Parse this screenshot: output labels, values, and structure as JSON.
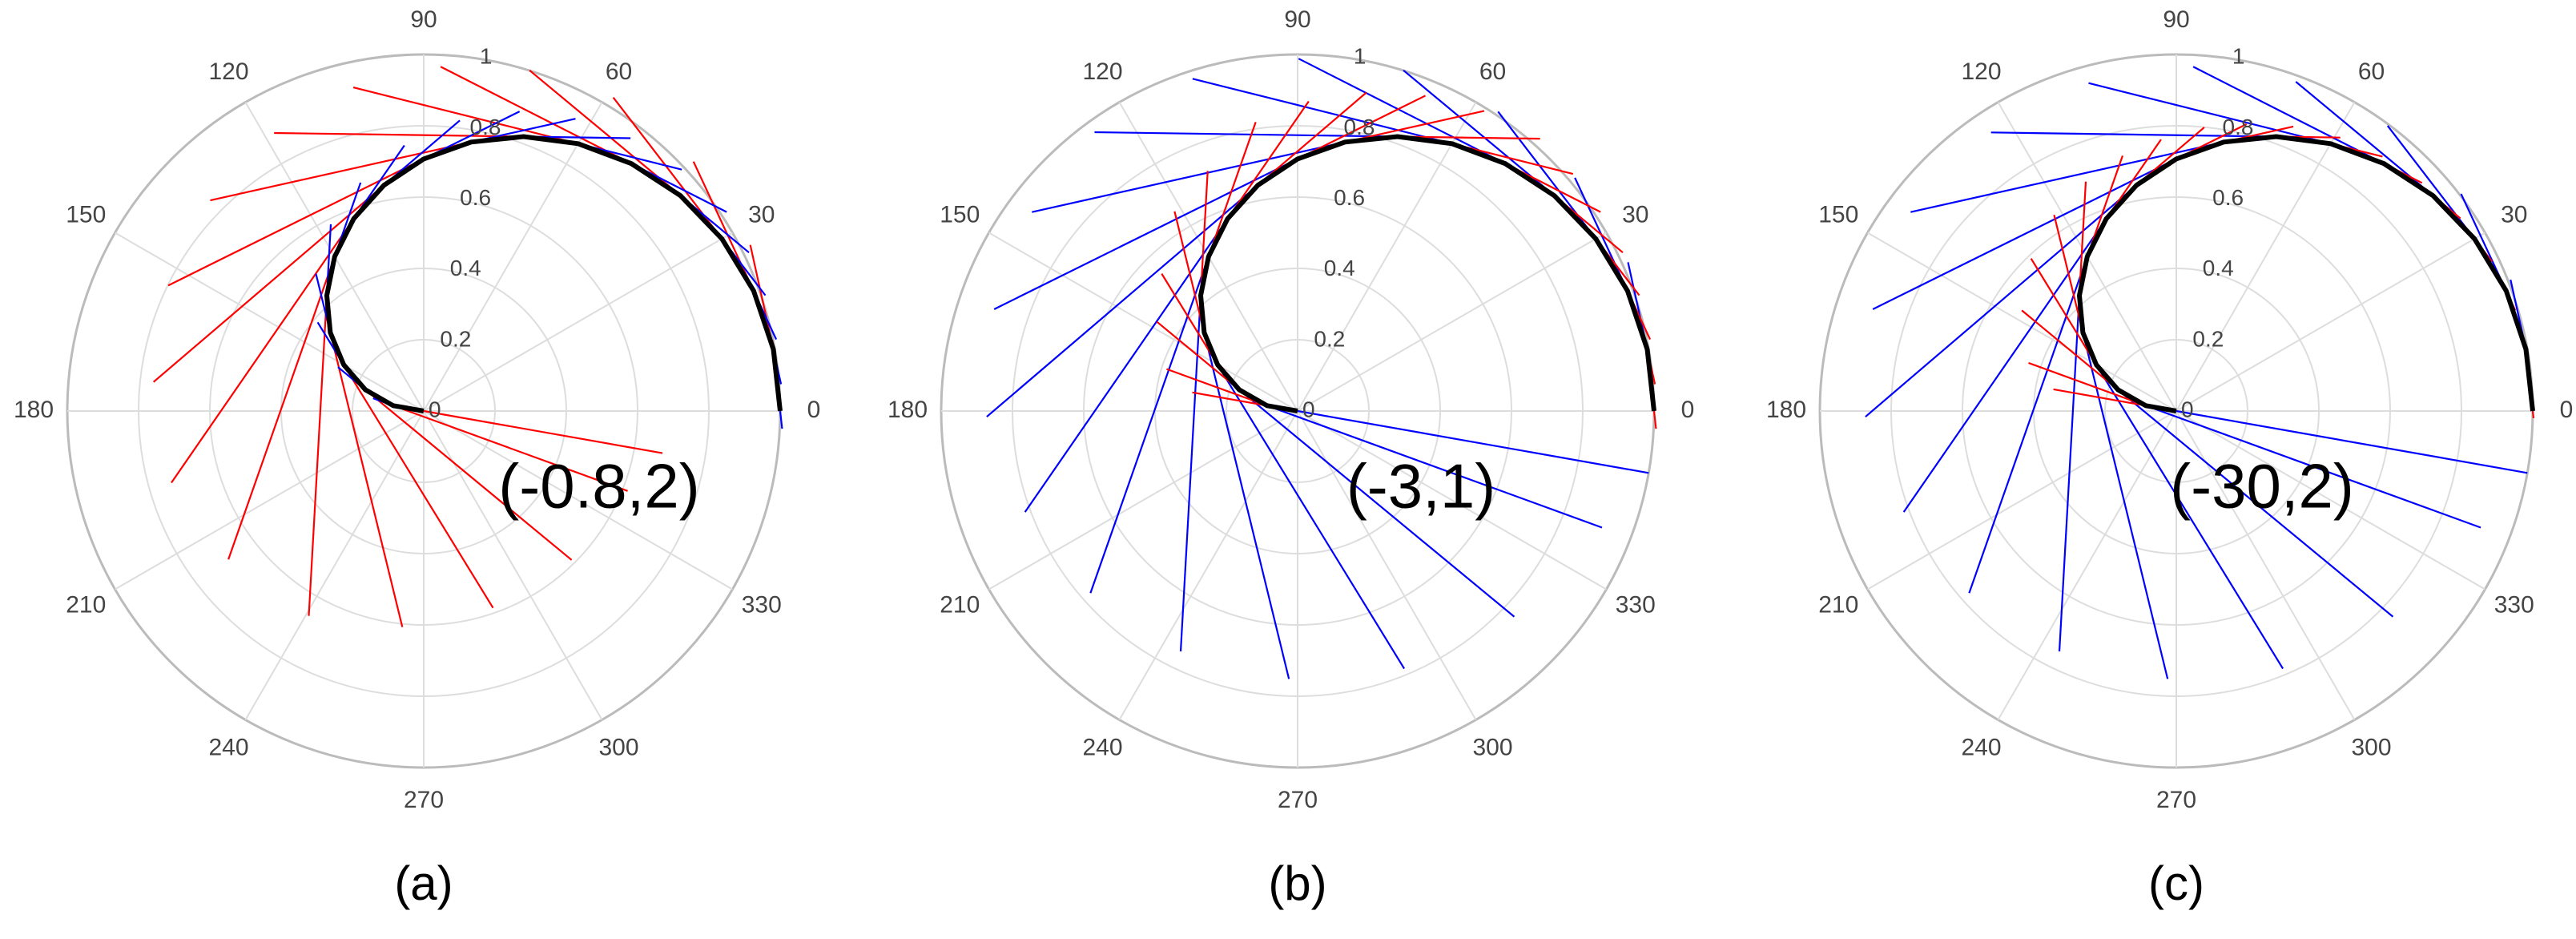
{
  "chart_data": [
    {
      "type": "polar",
      "caption": "(a)",
      "annotation": "(-0.8,2)",
      "theta_ticks": [
        0,
        30,
        60,
        90,
        120,
        150,
        180,
        210,
        240,
        270,
        300,
        330
      ],
      "rlim": [
        0,
        1
      ],
      "rticks": [
        0,
        0.2,
        0.4,
        0.6,
        0.8,
        1
      ],
      "x": [
        0,
        10,
        20,
        30,
        40,
        50,
        60,
        70,
        80,
        90,
        100,
        110,
        120,
        130,
        140,
        150,
        160,
        170,
        180
      ],
      "r": [
        1,
        0.996,
        0.985,
        0.966,
        0.94,
        0.906,
        0.866,
        0.819,
        0.766,
        0.707,
        0.643,
        0.574,
        0.5,
        0.423,
        0.342,
        0.259,
        0.174,
        0.087,
        0
      ],
      "curve_color": "#000000",
      "series": [
        {
          "color": "#ff0000",
          "values": [
            0.2,
            0.3,
            0.4,
            0.5,
            0.55,
            0.6,
            0.65,
            0.7,
            0.75,
            0.8,
            0.85,
            0.9,
            0.9,
            0.9,
            0.85,
            0.8,
            0.75,
            0.7,
            0.68
          ]
        },
        {
          "color": "#0000ff",
          "values": [
            -0.05,
            -0.1,
            -0.15,
            -0.2,
            -0.25,
            -0.3,
            -0.3,
            -0.3,
            -0.3,
            -0.3,
            -0.28,
            -0.25,
            -0.22,
            -0.2,
            -0.17,
            -0.14,
            -0.1,
            -0.06,
            -0.03
          ]
        }
      ]
    },
    {
      "type": "polar",
      "caption": "(b)",
      "annotation": "(-3,1)",
      "theta_ticks": [
        0,
        30,
        60,
        90,
        120,
        150,
        180,
        210,
        240,
        270,
        300,
        330
      ],
      "rlim": [
        0,
        1
      ],
      "rticks": [
        0,
        0.2,
        0.4,
        0.6,
        0.8,
        1
      ],
      "x": [
        0,
        10,
        20,
        30,
        40,
        50,
        60,
        70,
        80,
        90,
        100,
        110,
        120,
        130,
        140,
        150,
        160,
        170,
        180
      ],
      "r": [
        1,
        0.996,
        0.985,
        0.966,
        0.94,
        0.906,
        0.866,
        0.819,
        0.766,
        0.707,
        0.643,
        0.574,
        0.5,
        0.423,
        0.342,
        0.259,
        0.174,
        0.087,
        0
      ],
      "curve_color": "#000000",
      "series": [
        {
          "color": "#0000ff",
          "values": [
            0.15,
            0.25,
            0.35,
            0.45,
            0.55,
            0.65,
            0.75,
            0.85,
            0.9,
            0.95,
            1,
            1,
            1,
            1,
            1,
            1,
            1,
            1,
            1
          ]
        },
        {
          "color": "#ff0000",
          "values": [
            -0.05,
            -0.1,
            -0.15,
            -0.2,
            -0.25,
            -0.3,
            -0.35,
            -0.4,
            -0.4,
            -0.4,
            -0.4,
            -0.4,
            -0.4,
            -0.35,
            -0.35,
            -0.3,
            -0.3,
            -0.3,
            -0.3
          ]
        }
      ]
    },
    {
      "type": "polar",
      "caption": "(c)",
      "annotation": "(-30,2)",
      "theta_ticks": [
        0,
        30,
        60,
        90,
        120,
        150,
        180,
        210,
        240,
        270,
        300,
        330
      ],
      "rlim": [
        0,
        1
      ],
      "rticks": [
        0,
        0.2,
        0.4,
        0.6,
        0.8,
        1
      ],
      "x": [
        0,
        10,
        20,
        30,
        40,
        50,
        60,
        70,
        80,
        90,
        100,
        110,
        120,
        130,
        140,
        150,
        160,
        170,
        180
      ],
      "r": [
        1,
        0.996,
        0.985,
        0.966,
        0.94,
        0.906,
        0.866,
        0.819,
        0.766,
        0.707,
        0.643,
        0.574,
        0.5,
        0.423,
        0.342,
        0.259,
        0.174,
        0.087,
        0
      ],
      "curve_color": "#000000",
      "series": [
        {
          "color": "#0000ff",
          "values": [
            0.1,
            0.2,
            0.3,
            0.4,
            0.5,
            0.6,
            0.7,
            0.8,
            0.9,
            0.95,
            1,
            1,
            1,
            1,
            1,
            1,
            1,
            1,
            1
          ]
        },
        {
          "color": "#ff0000",
          "values": [
            -0.02,
            -0.04,
            -0.06,
            -0.08,
            -0.1,
            -0.12,
            -0.15,
            -0.18,
            -0.2,
            -0.22,
            -0.25,
            -0.27,
            -0.3,
            -0.32,
            -0.34,
            -0.35,
            -0.35,
            -0.35,
            -0.35
          ]
        }
      ]
    }
  ]
}
